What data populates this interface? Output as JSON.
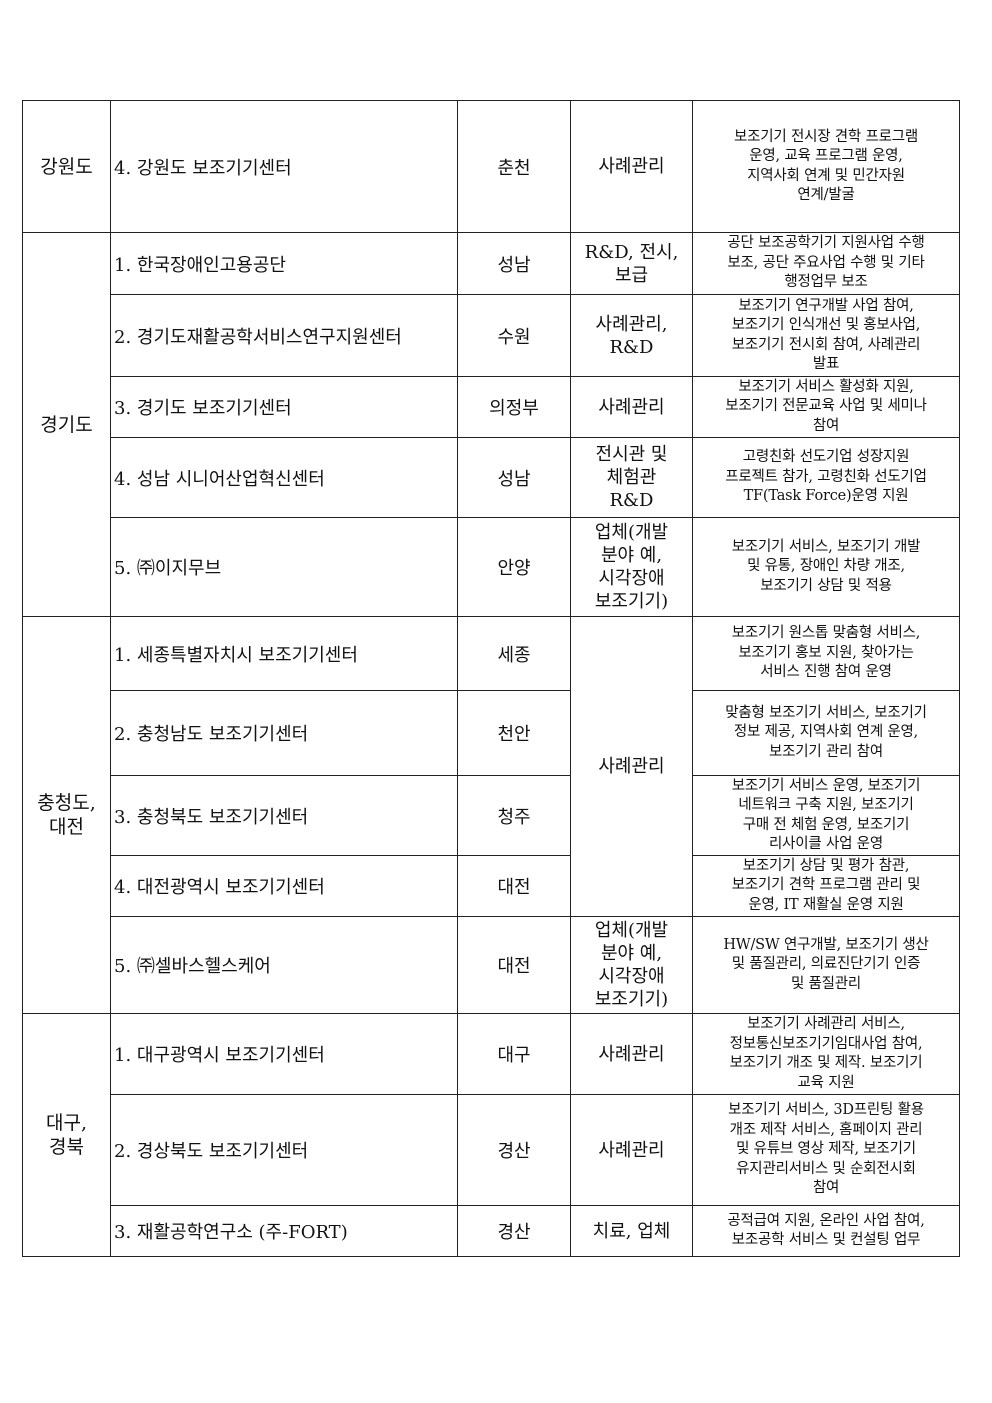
{
  "rows": [
    {
      "region": "강원도",
      "name": "4. 강원도 보조기기센터",
      "city": "춘천",
      "type": "사례관리",
      "desc": "보조기기 전시장 견학 프로그램\n운영, 교육 프로그램 운영,\n지역사회 연계 및 민간자원\n연계/발굴"
    },
    {
      "region": "경기도",
      "name": "1. 한국장애인고용공단",
      "city": "성남",
      "type": "R&D, 전시,\n보급",
      "desc": "공단 보조공학기기 지원사업 수행\n보조, 공단 주요사업 수행 및 기타\n행정업무 보조"
    },
    {
      "name": "2. 경기도재활공학서비스연구지원센터",
      "city": "수원",
      "type": "사례관리,\nR&D",
      "desc": "보조기기 연구개발 사업 참여,\n보조기기 인식개선 및 홍보사업,\n보조기기 전시회 참여, 사례관리\n발표"
    },
    {
      "name": "3. 경기도 보조기기센터",
      "city": "의정부",
      "type": "사례관리",
      "desc": "보조기기 서비스 활성화 지원,\n보조기기 전문교육 사업 및 세미나\n참여"
    },
    {
      "name": "4. 성남 시니어산업혁신센터",
      "city": "성남",
      "type": "전시관 및\n체험관\nR&D",
      "desc": "고령친화 선도기업 성장지원\n프로젝트 참가, 고령친화 선도기업\nTF(Task Force)운영 지원"
    },
    {
      "name": "5. ㈜이지무브",
      "city": "안양",
      "type": "업체(개발\n분야 예,\n시각장애\n보조기기)",
      "desc": "보조기기 서비스, 보조기기 개발\n및 유통, 장애인 차량 개조,\n보조기기 상담 및 적용"
    },
    {
      "region": "충청도,\n대전",
      "name": "1. 세종특별자치시 보조기기센터",
      "city": "세종",
      "type": "사례관리",
      "desc": "보조기기 원스톱 맞춤형 서비스,\n보조기기 홍보 지원, 찾아가는\n서비스 진행 참여 운영"
    },
    {
      "name": "2. 충청남도 보조기기센터",
      "city": "천안",
      "desc": "맞춤형 보조기기 서비스, 보조기기\n정보 제공, 지역사회 연계 운영,\n보조기기 관리 참여"
    },
    {
      "name": "3. 충청북도 보조기기센터",
      "city": "청주",
      "desc": "보조기기 서비스 운영, 보조기기\n네트워크 구축 지원, 보조기기\n구매 전 체험 운영, 보조기기\n리사이클 사업 운영"
    },
    {
      "name": "4. 대전광역시 보조기기센터",
      "city": "대전",
      "desc": "보조기기 상담 및 평가 참관,\n보조기기 견학 프로그램 관리 및\n운영, IT 재활실 운영 지원"
    },
    {
      "name": "5. ㈜셀바스헬스케어",
      "city": "대전",
      "type": "업체(개발\n분야 예,\n시각장애\n보조기기)",
      "desc": "HW/SW 연구개발, 보조기기 생산\n및 품질관리, 의료진단기기 인증\n및 품질관리"
    },
    {
      "region": "대구,\n경북",
      "name": "1. 대구광역시 보조기기센터",
      "city": "대구",
      "type": "사례관리",
      "desc": "보조기기 사례관리 서비스,\n정보통신보조기기임대사업 참여,\n보조기기 개조 및 제작. 보조기기\n교육 지원"
    },
    {
      "name": "2. 경상북도 보조기기센터",
      "city": "경산",
      "type": "사례관리",
      "desc": "보조기기 서비스, 3D프린팅 활용\n개조 제작 서비스, 홈페이지 관리\n및 유튜브 영상 제작, 보조기기\n유지관리서비스 및 순회전시회\n참여"
    },
    {
      "name": "3. 재활공학연구소 (주-FORT)",
      "city": "경산",
      "type": "치료, 업체",
      "desc": "공적급여 지원, 온라인 사업 참여,\n보조공학 서비스 및 컨설팅 업무"
    }
  ]
}
